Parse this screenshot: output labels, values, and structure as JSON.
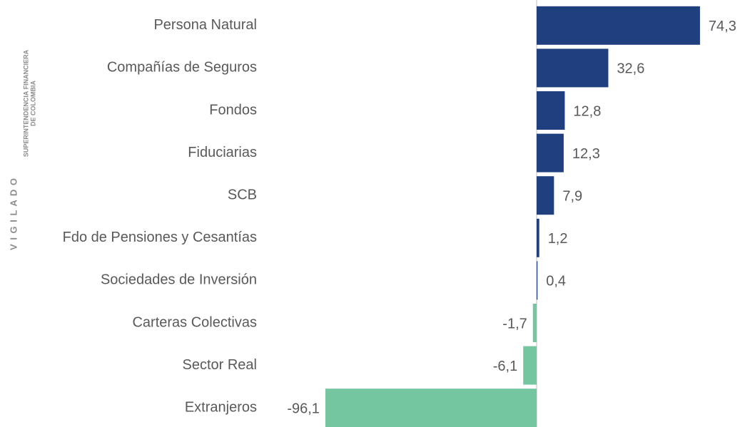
{
  "chart_data": {
    "type": "bar",
    "orientation": "horizontal",
    "categories": [
      "Persona Natural",
      "Compañías de Seguros",
      "Fondos",
      "Fiduciarias",
      "SCB",
      "Fdo de Pensiones y Cesantías",
      "Sociedades de Inversión",
      "Carteras Colectivas",
      "Sector Real",
      "Extranjeros"
    ],
    "values": [
      74.3,
      32.6,
      12.8,
      12.3,
      7.9,
      1.2,
      0.4,
      -1.7,
      -6.1,
      -96.1
    ],
    "value_labels": [
      "74,3",
      "32,6",
      "12,8",
      "12,3",
      "7,9",
      "1,2",
      "0,4",
      "-1,7",
      "-6,1",
      "-96,1"
    ],
    "color": "#1f3f7f",
    "negative_color": "#74c6a0",
    "annotations": [
      "V I G I L A D O",
      "SUPERINTENDENCIA FINANCIERA",
      "DE COLOMBIA"
    ]
  }
}
